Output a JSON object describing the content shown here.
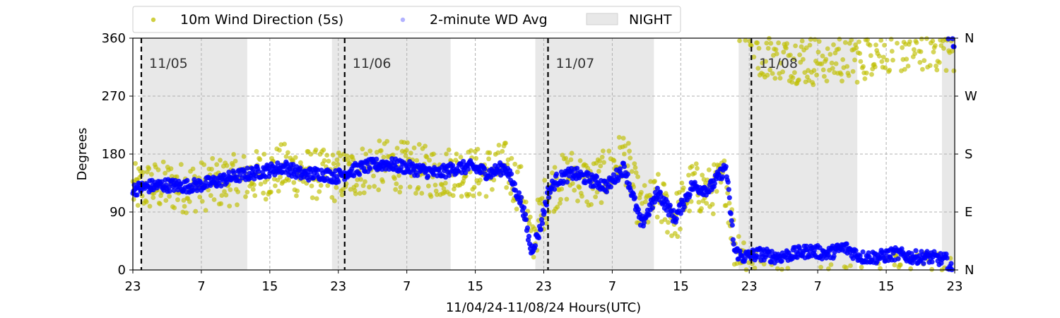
{
  "chart_data": {
    "type": "scatter",
    "title": "",
    "xlabel": "11/04/24-11/08/24  Hours(UTC)",
    "ylabel": "Degrees",
    "ylim": [
      0,
      360
    ],
    "xlim_hours": [
      0,
      97
    ],
    "grid": true,
    "legend_placement": "top-center",
    "x_tick_labels": [
      "23",
      "7",
      "15",
      "23",
      "7",
      "15",
      "23",
      "7",
      "15",
      "23",
      "7",
      "15",
      "23"
    ],
    "y_ticks": [
      0,
      90,
      180,
      270,
      360
    ],
    "y_tick_labels": [
      "0",
      "90",
      "180",
      "270",
      "360"
    ],
    "right_tick_labels": [
      "N",
      "E",
      "S",
      "W",
      "N"
    ],
    "day_labels": [
      "11/05",
      "11/06",
      "11/07",
      "11/08"
    ],
    "day_boundaries_hours": [
      1,
      25,
      49,
      73
    ],
    "night_bands_hours": [
      [
        1,
        13.5
      ],
      [
        23.5,
        37.5
      ],
      [
        47.5,
        61.5
      ],
      [
        71.5,
        85.5
      ],
      [
        95.5,
        97
      ]
    ],
    "legend": [
      {
        "label": "10m Wind Direction (5s)",
        "marker": "point",
        "color": "#bfbf00"
      },
      {
        "label": "2-minute WD Avg",
        "marker": "point",
        "color": "#0000ff"
      },
      {
        "label": "NIGHT",
        "marker": "patch",
        "color": "#d9d9d9"
      }
    ],
    "series": [
      {
        "name": "10m Wind Direction (5s)",
        "color": "#bfbf00",
        "spread": 40,
        "x_hours": [
          0,
          2,
          4,
          6,
          8,
          10,
          12,
          14,
          16,
          18,
          20,
          22,
          24,
          26,
          28,
          30,
          32,
          34,
          36,
          38,
          40,
          42,
          44,
          46,
          47,
          48,
          49,
          50,
          52,
          54,
          56,
          58,
          60,
          62,
          64,
          66,
          68,
          70,
          71,
          72,
          74,
          76,
          78,
          80,
          82,
          84,
          86,
          88,
          90,
          92,
          94,
          96,
          97
        ],
        "y_values": [
          125,
          130,
          130,
          128,
          130,
          135,
          140,
          145,
          150,
          158,
          150,
          148,
          145,
          150,
          160,
          162,
          160,
          155,
          150,
          155,
          150,
          152,
          160,
          120,
          40,
          80,
          120,
          135,
          150,
          130,
          150,
          180,
          90,
          110,
          80,
          130,
          120,
          140,
          40,
          30,
          340,
          335,
          330,
          325,
          330,
          330,
          330,
          350,
          345,
          345,
          350,
          345,
          345
        ]
      },
      {
        "name": "2-minute WD Avg",
        "color": "#0000ff",
        "spread": 10,
        "x_hours": [
          0,
          2,
          4,
          6,
          8,
          10,
          12,
          14,
          16,
          18,
          20,
          22,
          24,
          26,
          28,
          30,
          32,
          34,
          36,
          38,
          40,
          42,
          44,
          46,
          47,
          48,
          49,
          50,
          52,
          54,
          56,
          58,
          60,
          62,
          64,
          66,
          68,
          70,
          71,
          72,
          74,
          76,
          78,
          80,
          82,
          84,
          86,
          88,
          90,
          92,
          94,
          96,
          97
        ],
        "y_values": [
          125,
          130,
          132,
          130,
          132,
          138,
          145,
          150,
          155,
          160,
          148,
          150,
          145,
          155,
          162,
          165,
          160,
          155,
          150,
          158,
          160,
          150,
          160,
          100,
          30,
          60,
          120,
          140,
          150,
          140,
          130,
          160,
          70,
          120,
          80,
          130,
          125,
          160,
          30,
          20,
          25,
          20,
          25,
          30,
          25,
          35,
          20,
          20,
          25,
          20,
          20,
          15,
          350
        ]
      }
    ]
  }
}
